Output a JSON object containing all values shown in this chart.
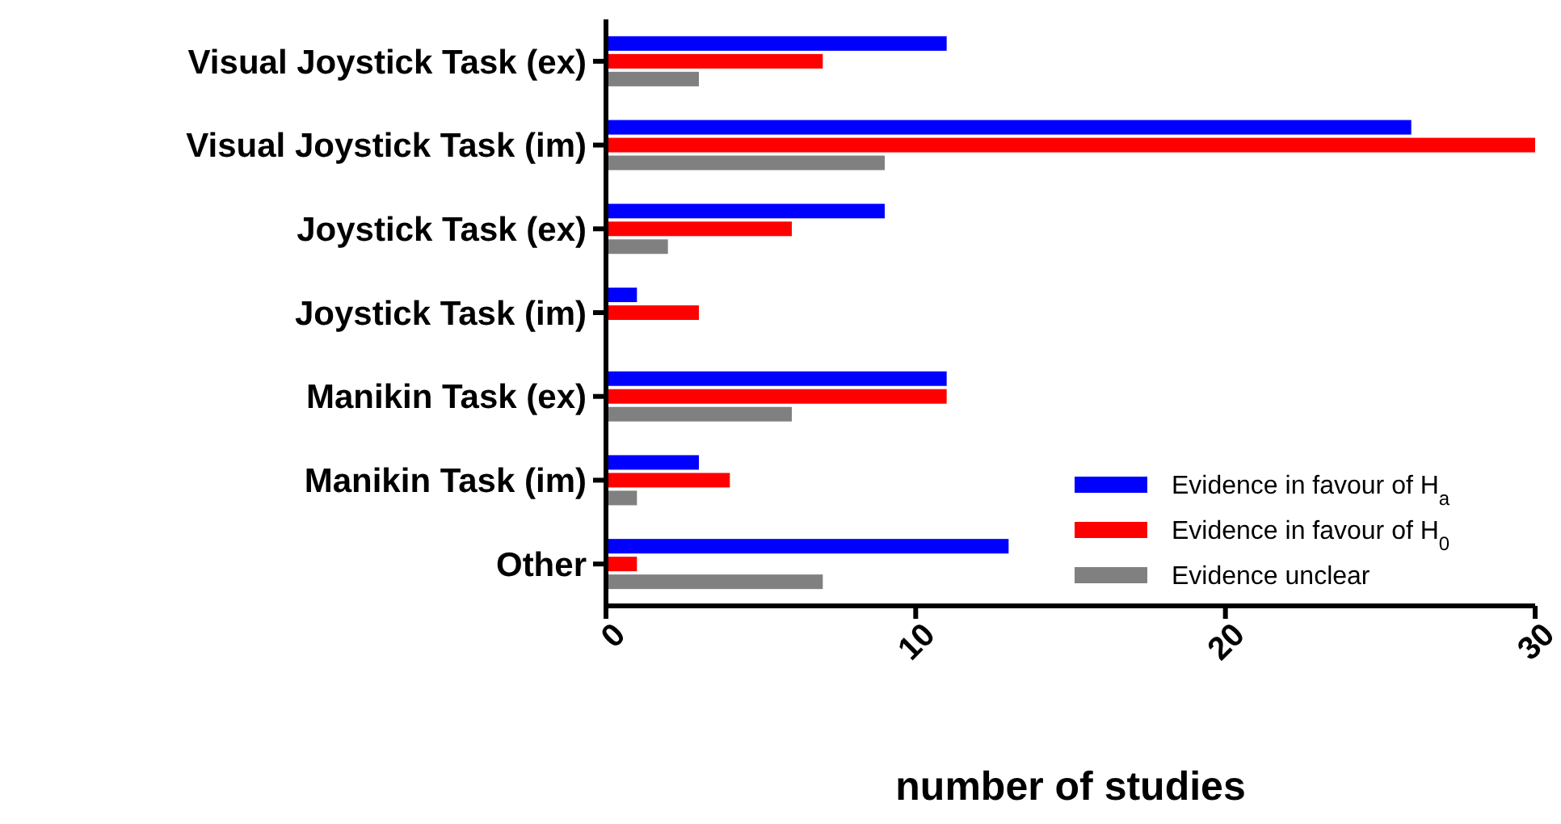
{
  "chart_data": {
    "type": "bar",
    "orientation": "horizontal",
    "xlabel": "number of studies",
    "categories": [
      "Visual Joystick Task (ex)",
      "Visual Joystick Task (im)",
      "Joystick Task (ex)",
      "Joystick Task (im)",
      "Manikin Task (ex)",
      "Manikin Task (im)",
      "Other"
    ],
    "series": [
      {
        "name": "Evidence in favour of H$_{a}$",
        "color": "#0000ff",
        "values": [
          11,
          26,
          9,
          1,
          11,
          3,
          13
        ]
      },
      {
        "name": "Evidence in favour of H$_{0}$",
        "color": "#ff0000",
        "values": [
          7,
          30,
          6,
          3,
          11,
          4,
          1
        ]
      },
      {
        "name": "Evidence unclear",
        "color": "#808080",
        "values": [
          3,
          9,
          2,
          0,
          6,
          1,
          7
        ]
      }
    ],
    "xlim": [
      0,
      30
    ],
    "xticks": [
      0,
      10,
      20,
      30
    ],
    "legend": "bottom right",
    "grid": false
  }
}
